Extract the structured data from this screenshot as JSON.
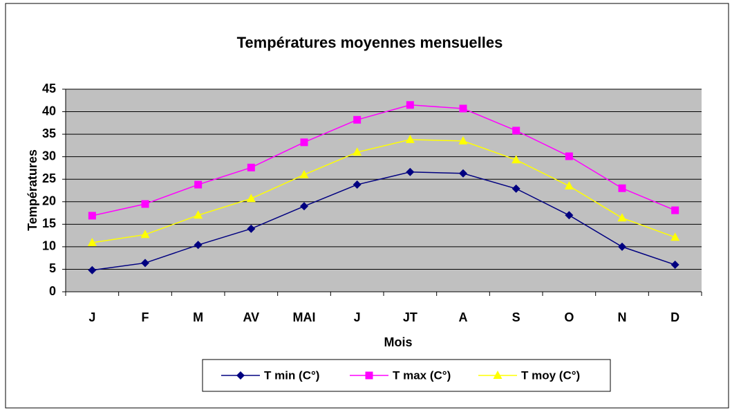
{
  "chart_data": {
    "type": "line",
    "title": "Températures  moyennes mensuelles",
    "x_label": "Mois",
    "y_label": "Températures",
    "categories": [
      "J",
      "F",
      "M",
      "AV",
      "MAI",
      "J",
      "JT",
      "A",
      "S",
      "O",
      "N",
      "D"
    ],
    "series": [
      {
        "name": "T min (C°)",
        "color": "#000080",
        "marker": "diamond",
        "values": [
          4.8,
          6.4,
          10.4,
          14,
          19,
          23.8,
          26.6,
          26.3,
          22.9,
          17,
          10,
          6
        ]
      },
      {
        "name": "T max (C°)",
        "color": "#ff00ff",
        "marker": "square",
        "values": [
          16.9,
          19.5,
          23.8,
          27.6,
          33.2,
          38.2,
          41.5,
          40.7,
          35.8,
          30.1,
          23,
          18.1
        ]
      },
      {
        "name": "T moy (C°)",
        "color": "#ffff00",
        "marker": "triangle",
        "values": [
          10.9,
          12.7,
          17,
          20.7,
          26,
          31,
          33.8,
          33.5,
          29.3,
          23.5,
          16.4,
          12.1
        ]
      }
    ],
    "ylim": [
      0,
      45
    ],
    "yticks": [
      0,
      5,
      10,
      15,
      20,
      25,
      30,
      35,
      40,
      45
    ],
    "grid": true,
    "legend": "bottom"
  }
}
